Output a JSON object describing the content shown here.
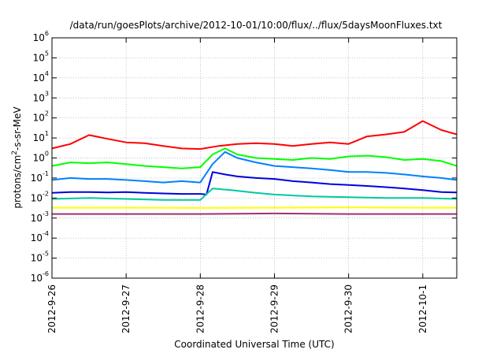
{
  "chart_data": {
    "type": "line",
    "title": "/data/run/goesPlots/archive/2012-10-01/10:00/flux/../flux/5daysMoonFluxes.txt",
    "xlabel": "Coordinated Universal Time (UTC)",
    "ylabel": {
      "pre": "protons/cm",
      "sup": "2",
      "post": "-s-sr-MeV"
    },
    "x_scale": "time",
    "xlim": [
      "2012-09-26",
      "2012-10-01T11:00"
    ],
    "x_ticks": [
      "2012-9-26",
      "2012-9-27",
      "2012-9-28",
      "2012-9-29",
      "2012-9-30",
      "2012-10-1"
    ],
    "y_scale": "log",
    "ylim": [
      1e-06,
      1000000.0
    ],
    "y_tick_exponents": [
      -6,
      -5,
      -4,
      -3,
      -2,
      -1,
      0,
      1,
      2,
      3,
      4,
      5,
      6
    ],
    "grid": true,
    "legend": "none",
    "series": [
      {
        "color": "#ff0000",
        "x": [
          "2012-09-26T00:00",
          "2012-09-26T06:00",
          "2012-09-26T12:00",
          "2012-09-26T18:00",
          "2012-09-27T00:00",
          "2012-09-27T06:00",
          "2012-09-27T12:00",
          "2012-09-27T18:00",
          "2012-09-28T00:00",
          "2012-09-28T06:00",
          "2012-09-28T12:00",
          "2012-09-28T18:00",
          "2012-09-29T00:00",
          "2012-09-29T06:00",
          "2012-09-29T12:00",
          "2012-09-29T18:00",
          "2012-09-30T00:00",
          "2012-09-30T06:00",
          "2012-09-30T12:00",
          "2012-09-30T18:00",
          "2012-10-01T00:00",
          "2012-10-01T06:00",
          "2012-10-01T11:00"
        ],
        "y": [
          3,
          5,
          14,
          9,
          6,
          5.5,
          4,
          3,
          2.8,
          4,
          5,
          5.5,
          5,
          4,
          5,
          6,
          5,
          12,
          15,
          20,
          70,
          25,
          15
        ]
      },
      {
        "color": "#00ff00",
        "x": [
          "2012-09-26T00:00",
          "2012-09-26T06:00",
          "2012-09-26T12:00",
          "2012-09-26T18:00",
          "2012-09-27T00:00",
          "2012-09-27T06:00",
          "2012-09-27T12:00",
          "2012-09-27T18:00",
          "2012-09-28T00:00",
          "2012-09-28T04:00",
          "2012-09-28T08:00",
          "2012-09-28T12:00",
          "2012-09-28T18:00",
          "2012-09-29T00:00",
          "2012-09-29T06:00",
          "2012-09-29T12:00",
          "2012-09-29T18:00",
          "2012-09-30T00:00",
          "2012-09-30T06:00",
          "2012-09-30T12:00",
          "2012-09-30T18:00",
          "2012-10-01T00:00",
          "2012-10-01T06:00",
          "2012-10-01T11:00"
        ],
        "y": [
          0.4,
          0.6,
          0.55,
          0.6,
          0.5,
          0.4,
          0.35,
          0.3,
          0.35,
          1.5,
          3,
          1.5,
          1,
          0.9,
          0.8,
          1,
          0.9,
          1.2,
          1.3,
          1.1,
          0.8,
          0.9,
          0.7,
          0.4
        ]
      },
      {
        "color": "#0080ff",
        "x": [
          "2012-09-26T00:00",
          "2012-09-26T06:00",
          "2012-09-26T12:00",
          "2012-09-26T18:00",
          "2012-09-27T00:00",
          "2012-09-27T06:00",
          "2012-09-27T12:00",
          "2012-09-27T18:00",
          "2012-09-28T00:00",
          "2012-09-28T04:00",
          "2012-09-28T08:00",
          "2012-09-28T12:00",
          "2012-09-28T18:00",
          "2012-09-29T00:00",
          "2012-09-29T06:00",
          "2012-09-29T12:00",
          "2012-09-29T18:00",
          "2012-09-30T00:00",
          "2012-09-30T06:00",
          "2012-09-30T12:00",
          "2012-09-30T18:00",
          "2012-10-01T00:00",
          "2012-10-01T06:00",
          "2012-10-01T11:00"
        ],
        "y": [
          0.08,
          0.1,
          0.09,
          0.09,
          0.08,
          0.07,
          0.06,
          0.07,
          0.06,
          0.5,
          2,
          1,
          0.6,
          0.4,
          0.35,
          0.3,
          0.25,
          0.2,
          0.2,
          0.18,
          0.15,
          0.12,
          0.1,
          0.08
        ]
      },
      {
        "color": "#0000dd",
        "x": [
          "2012-09-26T00:00",
          "2012-09-26T06:00",
          "2012-09-26T12:00",
          "2012-09-26T18:00",
          "2012-09-27T00:00",
          "2012-09-27T06:00",
          "2012-09-27T12:00",
          "2012-09-27T18:00",
          "2012-09-28T00:00",
          "2012-09-28T02:00",
          "2012-09-28T04:00",
          "2012-09-28T08:00",
          "2012-09-28T12:00",
          "2012-09-28T18:00",
          "2012-09-29T00:00",
          "2012-09-29T06:00",
          "2012-09-29T12:00",
          "2012-09-29T18:00",
          "2012-09-30T00:00",
          "2012-09-30T06:00",
          "2012-09-30T12:00",
          "2012-09-30T18:00",
          "2012-10-01T00:00",
          "2012-10-01T06:00",
          "2012-10-01T11:00"
        ],
        "y": [
          0.018,
          0.02,
          0.02,
          0.019,
          0.02,
          0.018,
          0.017,
          0.016,
          0.016,
          0.015,
          0.2,
          0.15,
          0.12,
          0.1,
          0.09,
          0.07,
          0.06,
          0.05,
          0.045,
          0.04,
          0.035,
          0.03,
          0.025,
          0.02,
          0.019
        ]
      },
      {
        "color": "#00c8a0",
        "x": [
          "2012-09-26T00:00",
          "2012-09-26T12:00",
          "2012-09-27T00:00",
          "2012-09-27T12:00",
          "2012-09-28T00:00",
          "2012-09-28T04:00",
          "2012-09-28T10:00",
          "2012-09-28T18:00",
          "2012-09-29T00:00",
          "2012-09-29T12:00",
          "2012-09-30T00:00",
          "2012-09-30T12:00",
          "2012-10-01T00:00",
          "2012-10-01T11:00"
        ],
        "y": [
          0.009,
          0.01,
          0.009,
          0.008,
          0.008,
          0.03,
          0.025,
          0.018,
          0.015,
          0.012,
          0.011,
          0.01,
          0.01,
          0.009
        ]
      },
      {
        "color": "#ffff00",
        "x": [
          "2012-09-26T00:00",
          "2012-09-27T00:00",
          "2012-09-28T00:00",
          "2012-09-29T00:00",
          "2012-09-30T00:00",
          "2012-10-01T00:00",
          "2012-10-01T11:00"
        ],
        "y": [
          0.0033,
          0.0033,
          0.0032,
          0.0033,
          0.0034,
          0.0033,
          0.0033
        ]
      },
      {
        "color": "#a03070",
        "x": [
          "2012-09-26T00:00",
          "2012-09-27T00:00",
          "2012-09-28T00:00",
          "2012-09-29T00:00",
          "2012-09-30T00:00",
          "2012-10-01T00:00",
          "2012-10-01T11:00"
        ],
        "y": [
          0.0016,
          0.0016,
          0.0016,
          0.0017,
          0.0016,
          0.0016,
          0.0016
        ]
      }
    ]
  }
}
